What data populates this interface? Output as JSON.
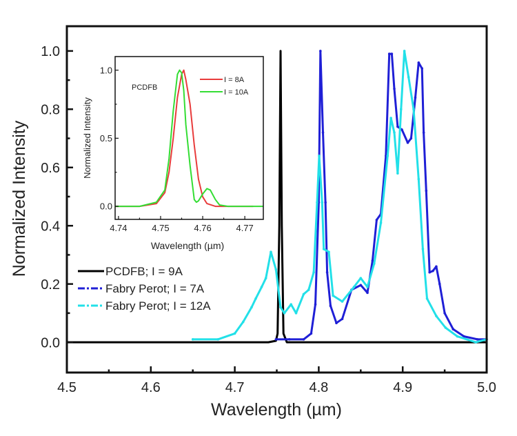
{
  "chart_data": [
    {
      "type": "line",
      "xlabel": "Wavelength (µm)",
      "ylabel": "Normalized Intensity",
      "xlim": [
        4.5,
        5.0
      ],
      "ylim": [
        -0.104,
        1.085
      ],
      "xticks": [
        "4.5",
        "4.6",
        "4.7",
        "4.8",
        "4.9",
        "5.0"
      ],
      "yticks": [
        "0.0",
        "0.2",
        "0.4",
        "0.6",
        "0.8",
        "1.0"
      ],
      "grid": false,
      "legend_position": "bottom-left",
      "series": [
        {
          "name": "PCDFB; I = 9A",
          "color": "#000000",
          "x": [
            4.5,
            4.74,
            4.749,
            4.751,
            4.753,
            4.7545,
            4.756,
            4.758,
            4.762,
            5.0
          ],
          "y": [
            0,
            0,
            0.005,
            0.03,
            0.4,
            1.0,
            0.4,
            0.03,
            0,
            0
          ]
        },
        {
          "name": "Fabry Perot; I = 7A",
          "color": "#1f1fd6",
          "x": [
            4.749,
            4.765,
            4.782,
            4.791,
            4.796,
            4.8,
            4.802,
            4.805,
            4.808,
            4.81,
            4.814,
            4.821,
            4.828,
            4.839,
            4.85,
            4.858,
            4.864,
            4.869,
            4.874,
            4.88,
            4.884,
            4.887,
            4.89,
            4.894,
            4.899,
            4.906,
            4.91,
            4.915,
            4.919,
            4.923,
            4.925,
            4.928,
            4.932,
            4.936,
            4.94,
            4.944,
            4.95,
            4.96,
            4.973,
            4.989,
            5.0
          ],
          "y": [
            0.01,
            0.01,
            0.01,
            0.03,
            0.13,
            0.48,
            1.0,
            0.72,
            0.48,
            0.24,
            0.125,
            0.066,
            0.08,
            0.18,
            0.196,
            0.17,
            0.28,
            0.42,
            0.44,
            0.64,
            0.99,
            0.99,
            0.87,
            0.74,
            0.73,
            0.685,
            0.7,
            0.84,
            0.96,
            0.94,
            0.72,
            0.52,
            0.24,
            0.245,
            0.26,
            0.2,
            0.1,
            0.045,
            0.02,
            0.01,
            0.01
          ]
        },
        {
          "name": "Fabry Perot; I = 12A",
          "color": "#22e0e8",
          "x": [
            4.65,
            4.68,
            4.7,
            4.71,
            4.72,
            4.725,
            4.732,
            4.737,
            4.743,
            4.749,
            4.7545,
            4.759,
            4.767,
            4.773,
            4.782,
            4.788,
            4.794,
            4.798,
            4.8005,
            4.804,
            4.806,
            4.812,
            4.817,
            4.828,
            4.842,
            4.85,
            4.858,
            4.866,
            4.874,
            4.882,
            4.886,
            4.89,
            4.894,
            4.898,
            4.902,
            4.907,
            4.913,
            4.919,
            4.924,
            4.929,
            4.94,
            4.951,
            4.965,
            4.987,
            5.0
          ],
          "y": [
            0.01,
            0.01,
            0.03,
            0.07,
            0.12,
            0.15,
            0.19,
            0.22,
            0.31,
            0.25,
            0.12,
            0.1,
            0.13,
            0.1,
            0.165,
            0.18,
            0.24,
            0.48,
            0.64,
            0.48,
            0.32,
            0.31,
            0.16,
            0.14,
            0.19,
            0.22,
            0.19,
            0.27,
            0.41,
            0.64,
            0.77,
            0.72,
            0.58,
            0.8,
            1.0,
            0.91,
            0.8,
            0.56,
            0.32,
            0.15,
            0.09,
            0.05,
            0.02,
            0.0,
            0.01
          ]
        }
      ]
    },
    {
      "type": "line",
      "xlabel": "Wavelength (µm)",
      "ylabel": "Normalized Intensity",
      "annotation": "PCDFB",
      "xlim": [
        4.7392,
        4.7744
      ],
      "ylim": [
        -0.096,
        1.1
      ],
      "xticks": [
        "4.74",
        "4.75",
        "4.76",
        "4.77"
      ],
      "yticks": [
        "0.0",
        "0.5",
        "1.0"
      ],
      "grid": false,
      "legend_position": "top-right",
      "series": [
        {
          "name": "I = 8A",
          "color": "#e83b3b",
          "x": [
            4.7392,
            4.745,
            4.749,
            4.751,
            4.752,
            4.753,
            4.754,
            4.755,
            4.7555,
            4.756,
            4.757,
            4.758,
            4.759,
            4.76,
            4.761,
            4.763,
            4.772
          ],
          "y": [
            0,
            0,
            0.02,
            0.1,
            0.25,
            0.5,
            0.8,
            0.97,
            1.0,
            0.93,
            0.75,
            0.45,
            0.2,
            0.07,
            0.02,
            0,
            0
          ]
        },
        {
          "name": "I = 10A",
          "color": "#33dd33",
          "x": [
            4.7392,
            4.745,
            4.749,
            4.751,
            4.752,
            4.753,
            4.754,
            4.7545,
            4.755,
            4.7555,
            4.756,
            4.757,
            4.758,
            4.7585,
            4.759,
            4.76,
            4.761,
            4.7618,
            4.763,
            4.764,
            4.766,
            4.7744
          ],
          "y": [
            0,
            0,
            0.03,
            0.12,
            0.35,
            0.7,
            0.97,
            1.0,
            0.98,
            0.85,
            0.6,
            0.3,
            0.05,
            0.03,
            0.04,
            0.09,
            0.13,
            0.12,
            0.05,
            0.01,
            0,
            0
          ]
        }
      ]
    }
  ]
}
